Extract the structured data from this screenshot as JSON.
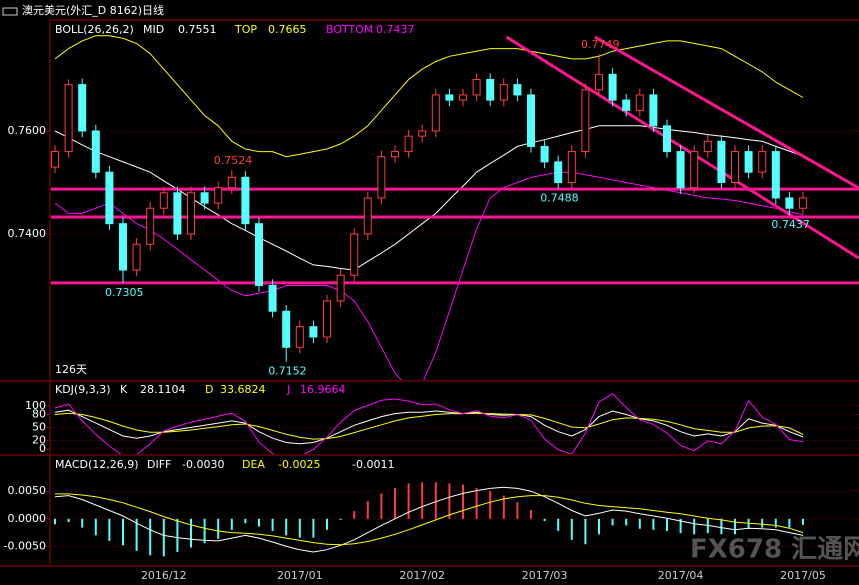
{
  "window_title": "澳元美元(外汇_D 8162)日线",
  "watermark": "FX678 汇通网",
  "chart_data": [
    {
      "type": "candlestick",
      "legend_title": "BOLL(26,26,2)",
      "days_label": "126天",
      "categories": [
        null,
        null,
        null,
        null,
        null,
        null,
        null,
        null,
        "2016/12",
        null,
        null,
        null,
        null,
        null,
        null,
        null,
        null,
        null,
        "2017/01",
        null,
        null,
        null,
        null,
        null,
        null,
        null,
        null,
        "2017/02",
        null,
        null,
        null,
        null,
        null,
        null,
        null,
        null,
        "2017/03",
        null,
        null,
        null,
        null,
        null,
        null,
        null,
        null,
        null,
        "2017/04",
        null,
        null,
        null,
        null,
        null,
        null,
        null,
        null,
        "2017/05"
      ],
      "candles": {
        "open": [
          0.753,
          0.756,
          0.769,
          0.76,
          0.752,
          0.742,
          0.733,
          0.738,
          0.745,
          0.748,
          0.74,
          0.748,
          0.746,
          0.749,
          0.751,
          0.742,
          0.73,
          0.725,
          0.718,
          0.722,
          0.72,
          0.727,
          0.732,
          0.74,
          0.747,
          0.755,
          0.756,
          0.759,
          0.76,
          0.767,
          0.766,
          0.767,
          0.77,
          0.766,
          0.769,
          0.767,
          0.757,
          0.754,
          0.75,
          0.756,
          0.768,
          0.771,
          0.766,
          0.764,
          0.767,
          0.761,
          0.756,
          0.749,
          0.756,
          0.758,
          0.75,
          0.756,
          0.752,
          0.756,
          0.747,
          0.745
        ],
        "high": [
          0.7572,
          0.77,
          0.7702,
          0.7612,
          0.7532,
          0.7432,
          0.7392,
          0.7462,
          0.7492,
          0.7492,
          0.7492,
          0.7492,
          0.7502,
          0.7524,
          0.7522,
          0.7432,
          0.7312,
          0.7262,
          0.7232,
          0.7232,
          0.7282,
          0.7332,
          0.7412,
          0.7482,
          0.7562,
          0.7572,
          0.7602,
          0.7612,
          0.7682,
          0.7682,
          0.7682,
          0.7712,
          0.7712,
          0.7702,
          0.7702,
          0.7682,
          0.7582,
          0.7552,
          0.7572,
          0.7692,
          0.7749,
          0.7722,
          0.7672,
          0.7682,
          0.7682,
          0.7622,
          0.7572,
          0.7572,
          0.7592,
          0.7592,
          0.7572,
          0.7572,
          0.7572,
          0.7572,
          0.7482,
          0.7482
        ],
        "low": [
          0.7518,
          0.7548,
          0.7588,
          0.7508,
          0.7408,
          0.7305,
          0.7318,
          0.7368,
          0.7438,
          0.7388,
          0.7388,
          0.7448,
          0.7448,
          0.7478,
          0.7408,
          0.7288,
          0.7238,
          0.7152,
          0.7168,
          0.7188,
          0.7188,
          0.7258,
          0.7308,
          0.7388,
          0.7458,
          0.7538,
          0.7548,
          0.7578,
          0.7588,
          0.7648,
          0.7648,
          0.7658,
          0.7648,
          0.7648,
          0.7658,
          0.7558,
          0.7528,
          0.7488,
          0.7488,
          0.7548,
          0.7668,
          0.7648,
          0.7628,
          0.7628,
          0.7598,
          0.7548,
          0.7478,
          0.7478,
          0.7548,
          0.7488,
          0.7488,
          0.7508,
          0.7508,
          0.7458,
          0.7437,
          0.7438
        ],
        "close": [
          0.756,
          0.769,
          0.76,
          0.752,
          0.742,
          0.733,
          0.738,
          0.745,
          0.748,
          0.74,
          0.748,
          0.746,
          0.749,
          0.751,
          0.742,
          0.73,
          0.725,
          0.718,
          0.722,
          0.72,
          0.727,
          0.732,
          0.74,
          0.747,
          0.755,
          0.756,
          0.759,
          0.76,
          0.767,
          0.766,
          0.767,
          0.77,
          0.766,
          0.769,
          0.767,
          0.757,
          0.754,
          0.75,
          0.756,
          0.768,
          0.771,
          0.766,
          0.764,
          0.767,
          0.761,
          0.756,
          0.749,
          0.756,
          0.758,
          0.75,
          0.756,
          0.752,
          0.756,
          0.747,
          0.745,
          0.747
        ],
        "up_color": "#ff3c3c",
        "down_color": "#54ffff"
      },
      "series": [
        {
          "name": "MID",
          "color": "#ffffff",
          "values": [
            0.76,
            0.7587,
            0.7573,
            0.756,
            0.755,
            0.754,
            0.753,
            0.752,
            0.7503,
            0.7487,
            0.747,
            0.7453,
            0.7437,
            0.742,
            0.7407,
            0.7393,
            0.738,
            0.7367,
            0.7353,
            0.734,
            0.7337,
            0.7333,
            0.733,
            0.7347,
            0.7363,
            0.738,
            0.74,
            0.742,
            0.744,
            0.7467,
            0.7493,
            0.752,
            0.7537,
            0.7553,
            0.757,
            0.7577,
            0.7583,
            0.759,
            0.7597,
            0.7603,
            0.761,
            0.761,
            0.761,
            0.761,
            0.7607,
            0.7603,
            0.76,
            0.7597,
            0.7593,
            0.759,
            0.7587,
            0.7583,
            0.758,
            0.757,
            0.7561,
            0.7551
          ]
        },
        {
          "name": "TOP",
          "color": "#ffff00",
          "values": [
            0.774,
            0.776,
            0.7775,
            0.7785,
            0.7785,
            0.778,
            0.777,
            0.775,
            0.772,
            0.769,
            0.766,
            0.763,
            0.761,
            0.758,
            0.7565,
            0.756,
            0.756,
            0.755,
            0.7555,
            0.756,
            0.7565,
            0.7575,
            0.759,
            0.761,
            0.764,
            0.767,
            0.77,
            0.772,
            0.7735,
            0.7745,
            0.775,
            0.7755,
            0.776,
            0.776,
            0.776,
            0.7755,
            0.775,
            0.7745,
            0.774,
            0.774,
            0.7745,
            0.7755,
            0.776,
            0.7765,
            0.777,
            0.7775,
            0.7775,
            0.777,
            0.7765,
            0.776,
            0.7745,
            0.773,
            0.7715,
            0.7695,
            0.768,
            0.7665
          ]
        },
        {
          "name": "BOTTOM",
          "color": "#ff00ff",
          "values": [
            0.746,
            0.744,
            0.744,
            0.745,
            0.746,
            0.744,
            0.742,
            0.7408,
            0.739,
            0.737,
            0.735,
            0.733,
            0.731,
            0.729,
            0.728,
            0.7285,
            0.729,
            0.73,
            0.73,
            0.73,
            0.73,
            0.729,
            0.727,
            0.723,
            0.718,
            0.713,
            0.71,
            0.711,
            0.717,
            0.725,
            0.733,
            0.741,
            0.747,
            0.749,
            0.75,
            0.751,
            0.7515,
            0.752,
            0.752,
            0.7515,
            0.751,
            0.7505,
            0.75,
            0.7495,
            0.749,
            0.7485,
            0.748,
            0.7475,
            0.747,
            0.7468,
            0.7465,
            0.746,
            0.7455,
            0.745,
            0.7443,
            0.7437
          ]
        }
      ],
      "legend_values": [
        0.7551,
        0.7665,
        0.7437
      ],
      "hlines": [
        0.7487,
        0.7433,
        0.7305
      ],
      "hline_color": "#ff1493",
      "trendlines": [
        {
          "x": [
            33.2,
            59.1
          ],
          "y": [
            0.77825,
            0.73534
          ]
        },
        {
          "x": [
            39.7,
            59.1
          ],
          "y": [
            0.77825,
            0.74893
          ]
        }
      ],
      "annotations": [
        {
          "text": "0.7524",
          "value": 0.7524
        },
        {
          "text": "0.7305",
          "value": 0.7305
        },
        {
          "text": "0.7152",
          "value": 0.7152
        },
        {
          "text": "0.7488",
          "value": 0.7488
        },
        {
          "text": "0.7749",
          "value": 0.7749
        },
        {
          "text": "0.7437",
          "value": 0.7437
        }
      ],
      "ylim": [
        0.71165,
        0.78155
      ],
      "yticks": [
        {
          "value": 0.74,
          "label": "0.7400"
        },
        {
          "value": 0.76,
          "label": "0.7600"
        }
      ],
      "grid": true
    },
    {
      "type": "line",
      "legend_title": "KDJ(9,3,3)",
      "series": [
        {
          "name": "K",
          "color": "#ffffff",
          "values": [
            85,
            90,
            75,
            60,
            45,
            30,
            25,
            30,
            40,
            45,
            50,
            55,
            60,
            65,
            60,
            40,
            25,
            15,
            12,
            15,
            25,
            40,
            55,
            65,
            75,
            82,
            85,
            85,
            88,
            85,
            82,
            85,
            80,
            78,
            80,
            75,
            55,
            40,
            30,
            45,
            75,
            88,
            80,
            70,
            65,
            55,
            40,
            30,
            35,
            30,
            40,
            70,
            60,
            55,
            40,
            28.1104
          ]
        },
        {
          "name": "D",
          "color": "#ffff00",
          "values": [
            80,
            83,
            80,
            73,
            64,
            53,
            44,
            39,
            39,
            41,
            44,
            48,
            52,
            56,
            58,
            52,
            43,
            34,
            27,
            23,
            24,
            29,
            38,
            47,
            56,
            65,
            72,
            76,
            80,
            82,
            82,
            83,
            82,
            81,
            80,
            79,
            71,
            61,
            51,
            49,
            58,
            68,
            72,
            71,
            69,
            64,
            56,
            47,
            43,
            39,
            39,
            49,
            53,
            54,
            49,
            33.6824
          ]
        },
        {
          "name": "J",
          "color": "#ff00ff",
          "values": [
            95,
            104,
            65,
            34,
            7,
            -16,
            -13,
            12,
            42,
            53,
            62,
            69,
            76,
            83,
            64,
            16,
            -11,
            -23,
            -18,
            -1,
            27,
            62,
            89,
            101,
            113,
            116,
            111,
            103,
            104,
            91,
            82,
            89,
            76,
            72,
            80,
            67,
            23,
            -2,
            -12,
            37,
            109,
            128,
            96,
            68,
            57,
            37,
            8,
            -4,
            19,
            12,
            42,
            112,
            74,
            57,
            22,
            16.9664
          ]
        }
      ],
      "legend_values": [
        28.1104,
        33.6824,
        16.9664
      ],
      "ylim": [
        -7,
        153
      ],
      "yticks": [
        0,
        20,
        50,
        80,
        100
      ],
      "grid": true
    },
    {
      "type": "macd",
      "legend_title": "MACD(12,26,9)",
      "series": [
        {
          "name": "DIFF",
          "color": "#ffffff",
          "values": [
            0.004,
            0.0042,
            0.0035,
            0.0025,
            0.0015,
            0.0005,
            -0.0008,
            -0.002,
            -0.003,
            -0.0034,
            -0.0037,
            -0.0039,
            -0.004,
            -0.0035,
            -0.003,
            -0.0035,
            -0.0042,
            -0.005,
            -0.0056,
            -0.006,
            -0.0056,
            -0.0048,
            -0.0038,
            -0.0025,
            -0.0012,
            0.0,
            0.0012,
            0.0022,
            0.0031,
            0.0039,
            0.0046,
            0.0051,
            0.0055,
            0.0057,
            0.0055,
            0.005,
            0.004,
            0.0028,
            0.0015,
            0.0005,
            0.001,
            0.0016,
            0.0014,
            0.0009,
            0.0005,
            0.0001,
            -0.0004,
            -0.0009,
            -0.0012,
            -0.0016,
            -0.002,
            -0.0017,
            -0.0018,
            -0.002,
            -0.0025,
            -0.003
          ]
        },
        {
          "name": "DEA",
          "color": "#ffff00",
          "values": [
            0.0045,
            0.0045,
            0.0043,
            0.004,
            0.0035,
            0.0029,
            0.0021,
            0.0013,
            0.0004,
            -0.0004,
            -0.0011,
            -0.0017,
            -0.0022,
            -0.0025,
            -0.0026,
            -0.0028,
            -0.0031,
            -0.0035,
            -0.0039,
            -0.0043,
            -0.0046,
            -0.0047,
            -0.0045,
            -0.0041,
            -0.0035,
            -0.0028,
            -0.002,
            -0.0011,
            -0.0002,
            0.0007,
            0.0015,
            0.0023,
            0.003,
            0.0036,
            0.004,
            0.0042,
            0.0042,
            0.0039,
            0.0034,
            0.0028,
            0.0024,
            0.0022,
            0.002,
            0.0018,
            0.0015,
            0.0012,
            0.0009,
            0.0005,
            0.0001,
            -0.0002,
            -0.0006,
            -0.0008,
            -0.001,
            -0.0012,
            -0.0017,
            -0.0025
          ]
        }
      ],
      "histogram": {
        "up_color": "#ff3c3c",
        "down_color": "#54ffff",
        "values": [
          -0.001,
          -0.0006,
          -0.0016,
          -0.003,
          -0.004,
          -0.0048,
          -0.0058,
          -0.0066,
          -0.0068,
          -0.006,
          -0.0052,
          -0.0044,
          -0.0036,
          -0.002,
          -0.0008,
          -0.0014,
          -0.0022,
          -0.003,
          -0.0034,
          -0.0034,
          -0.002,
          -0.0002,
          0.0014,
          0.0032,
          0.0046,
          0.0056,
          0.0064,
          0.0066,
          0.0066,
          0.0064,
          0.0062,
          0.0056,
          0.005,
          0.0042,
          0.003,
          0.0016,
          -0.0004,
          -0.0022,
          -0.0038,
          -0.0046,
          -0.0028,
          -0.0012,
          -0.0012,
          -0.0018,
          -0.002,
          -0.0022,
          -0.0026,
          -0.0028,
          -0.0026,
          -0.0028,
          -0.0028,
          -0.0018,
          -0.0016,
          -0.0016,
          -0.0016,
          -0.0011
        ]
      },
      "legend_values": [
        {
          "value": -0.003,
          "label": "-0.0030"
        },
        -0.0025,
        -0.0011
      ],
      "ylim": [
        -0.00836,
        0.011
      ],
      "yticks": [
        {
          "value": -0.005,
          "label": "-0.0050"
        },
        {
          "value": 0,
          "label": "0.0000"
        },
        {
          "value": 0.005,
          "label": "0.0050"
        }
      ],
      "grid": true
    }
  ]
}
